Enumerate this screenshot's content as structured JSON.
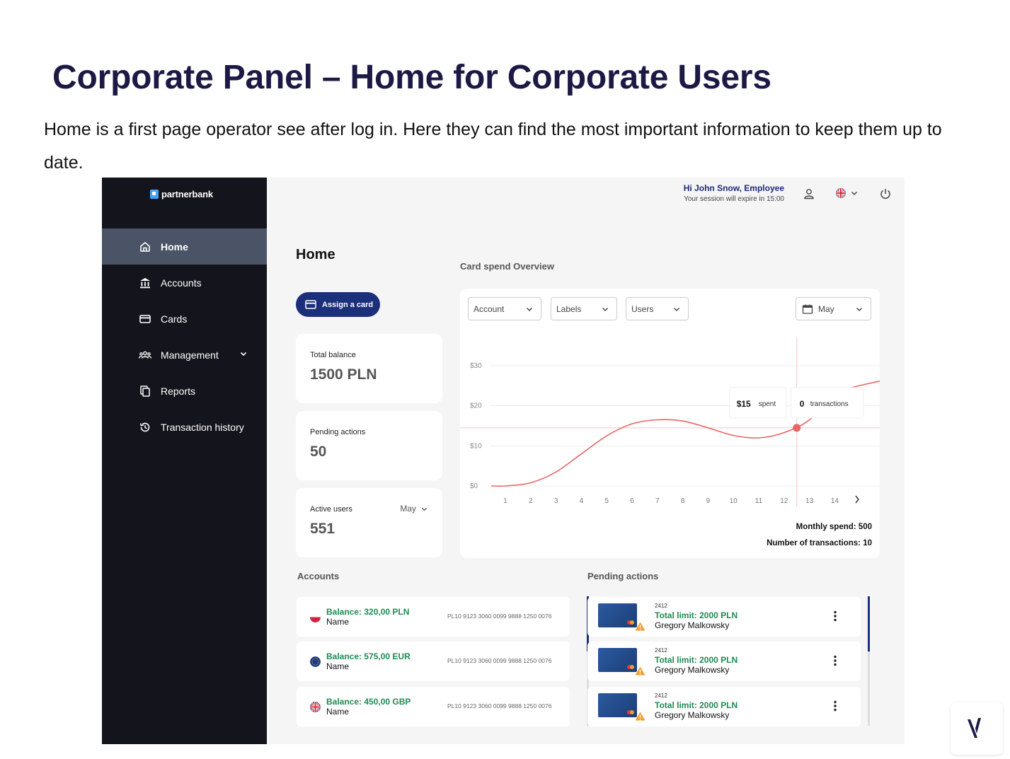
{
  "doc": {
    "title": "Corporate Panel – Home for Corporate Users",
    "intro": "Home is a first page operator see after log in. Here they can find the most important information to keep them up to date."
  },
  "app": {
    "brand": "partnerbank",
    "nav": [
      {
        "label": "Home",
        "icon": "home-icon",
        "active": true
      },
      {
        "label": "Accounts",
        "icon": "bank-icon"
      },
      {
        "label": "Cards",
        "icon": "card-icon"
      },
      {
        "label": "Management",
        "icon": "users-icon",
        "expandable": true
      },
      {
        "label": "Reports",
        "icon": "copy-icon"
      },
      {
        "label": "Transaction history",
        "icon": "history-icon"
      }
    ],
    "header": {
      "greeting": "Hi John Snow, Employee",
      "session": "Your session will expire in 15:00",
      "icons": [
        "user-icon",
        "uk-flag-icon",
        "chevron-down-icon",
        "power-icon"
      ]
    },
    "page_title": "Home",
    "assign_label": "Assign a card",
    "stats": [
      {
        "label": "Total balance",
        "value": "1500 PLN"
      },
      {
        "label": "Pending actions",
        "value": "50"
      },
      {
        "label": "Active users",
        "value": "551",
        "selector": "May"
      }
    ],
    "chart_section": {
      "label": "Card spend Overview",
      "filters": [
        "Account",
        "Labels",
        "Users"
      ],
      "month": "May",
      "tooltip": {
        "spent_value": "$15",
        "spent_label": "spent",
        "tx_value": "0",
        "tx_label": "transactions"
      },
      "monthly_spend": "Monthly spend: 500",
      "tx_count": "Number of transactions: 10"
    },
    "accounts_label": "Accounts",
    "accounts": [
      {
        "balance": "Balance: 320,00 PLN",
        "name": "Name",
        "iban": "PL10 9123 3060 0099 9888 1250 0076",
        "flag": "poland-flag-icon"
      },
      {
        "balance": "Balance: 575,00 EUR",
        "name": "Name",
        "iban": "PL10 9123 3060 0099 9888 1250 0076",
        "flag": "eu-flag-icon"
      },
      {
        "balance": "Balance: 450,00 GBP",
        "name": "Name",
        "iban": "PL10 9123 3060 0099 9888 1250 0076",
        "flag": "uk-flag-icon"
      }
    ],
    "pending_label": "Pending actions",
    "pending": [
      {
        "num": "2412",
        "limit": "Total limit: 2000 PLN",
        "name": "Gregory Malkowsky"
      },
      {
        "num": "2412",
        "limit": "Total limit: 2000 PLN",
        "name": "Gregory Malkowsky"
      },
      {
        "num": "2412",
        "limit": "Total limit: 2000 PLN",
        "name": "Gregory Malkowsky"
      }
    ]
  },
  "chart_data": {
    "type": "line",
    "x": [
      1,
      2,
      3,
      4,
      5,
      6,
      7,
      8,
      9,
      10,
      11,
      12,
      13,
      14
    ],
    "y": [
      0,
      0.8,
      3.5,
      8,
      12.5,
      15.5,
      16.5,
      16.2,
      14.5,
      12.6,
      12,
      13.3,
      16.5,
      23
    ],
    "ytick_labels": [
      "$0",
      "$10",
      "$20",
      "$30"
    ],
    "xtick_labels": [
      "1",
      "2",
      "3",
      "4",
      "5",
      "6",
      "7",
      "8",
      "9",
      "10",
      "11",
      "12",
      "13",
      "14"
    ],
    "ylim": [
      0,
      30
    ],
    "highlight_x": 12.5,
    "highlight_y": 14.5,
    "grid": true,
    "series_color": "#e86565"
  },
  "colors": {
    "sidebar": "#14151c",
    "active_nav": "#4a5466",
    "primary": "#1b2f7a",
    "positive": "#1d8a52",
    "line": "#e86565",
    "warning": "#f59e2b"
  }
}
